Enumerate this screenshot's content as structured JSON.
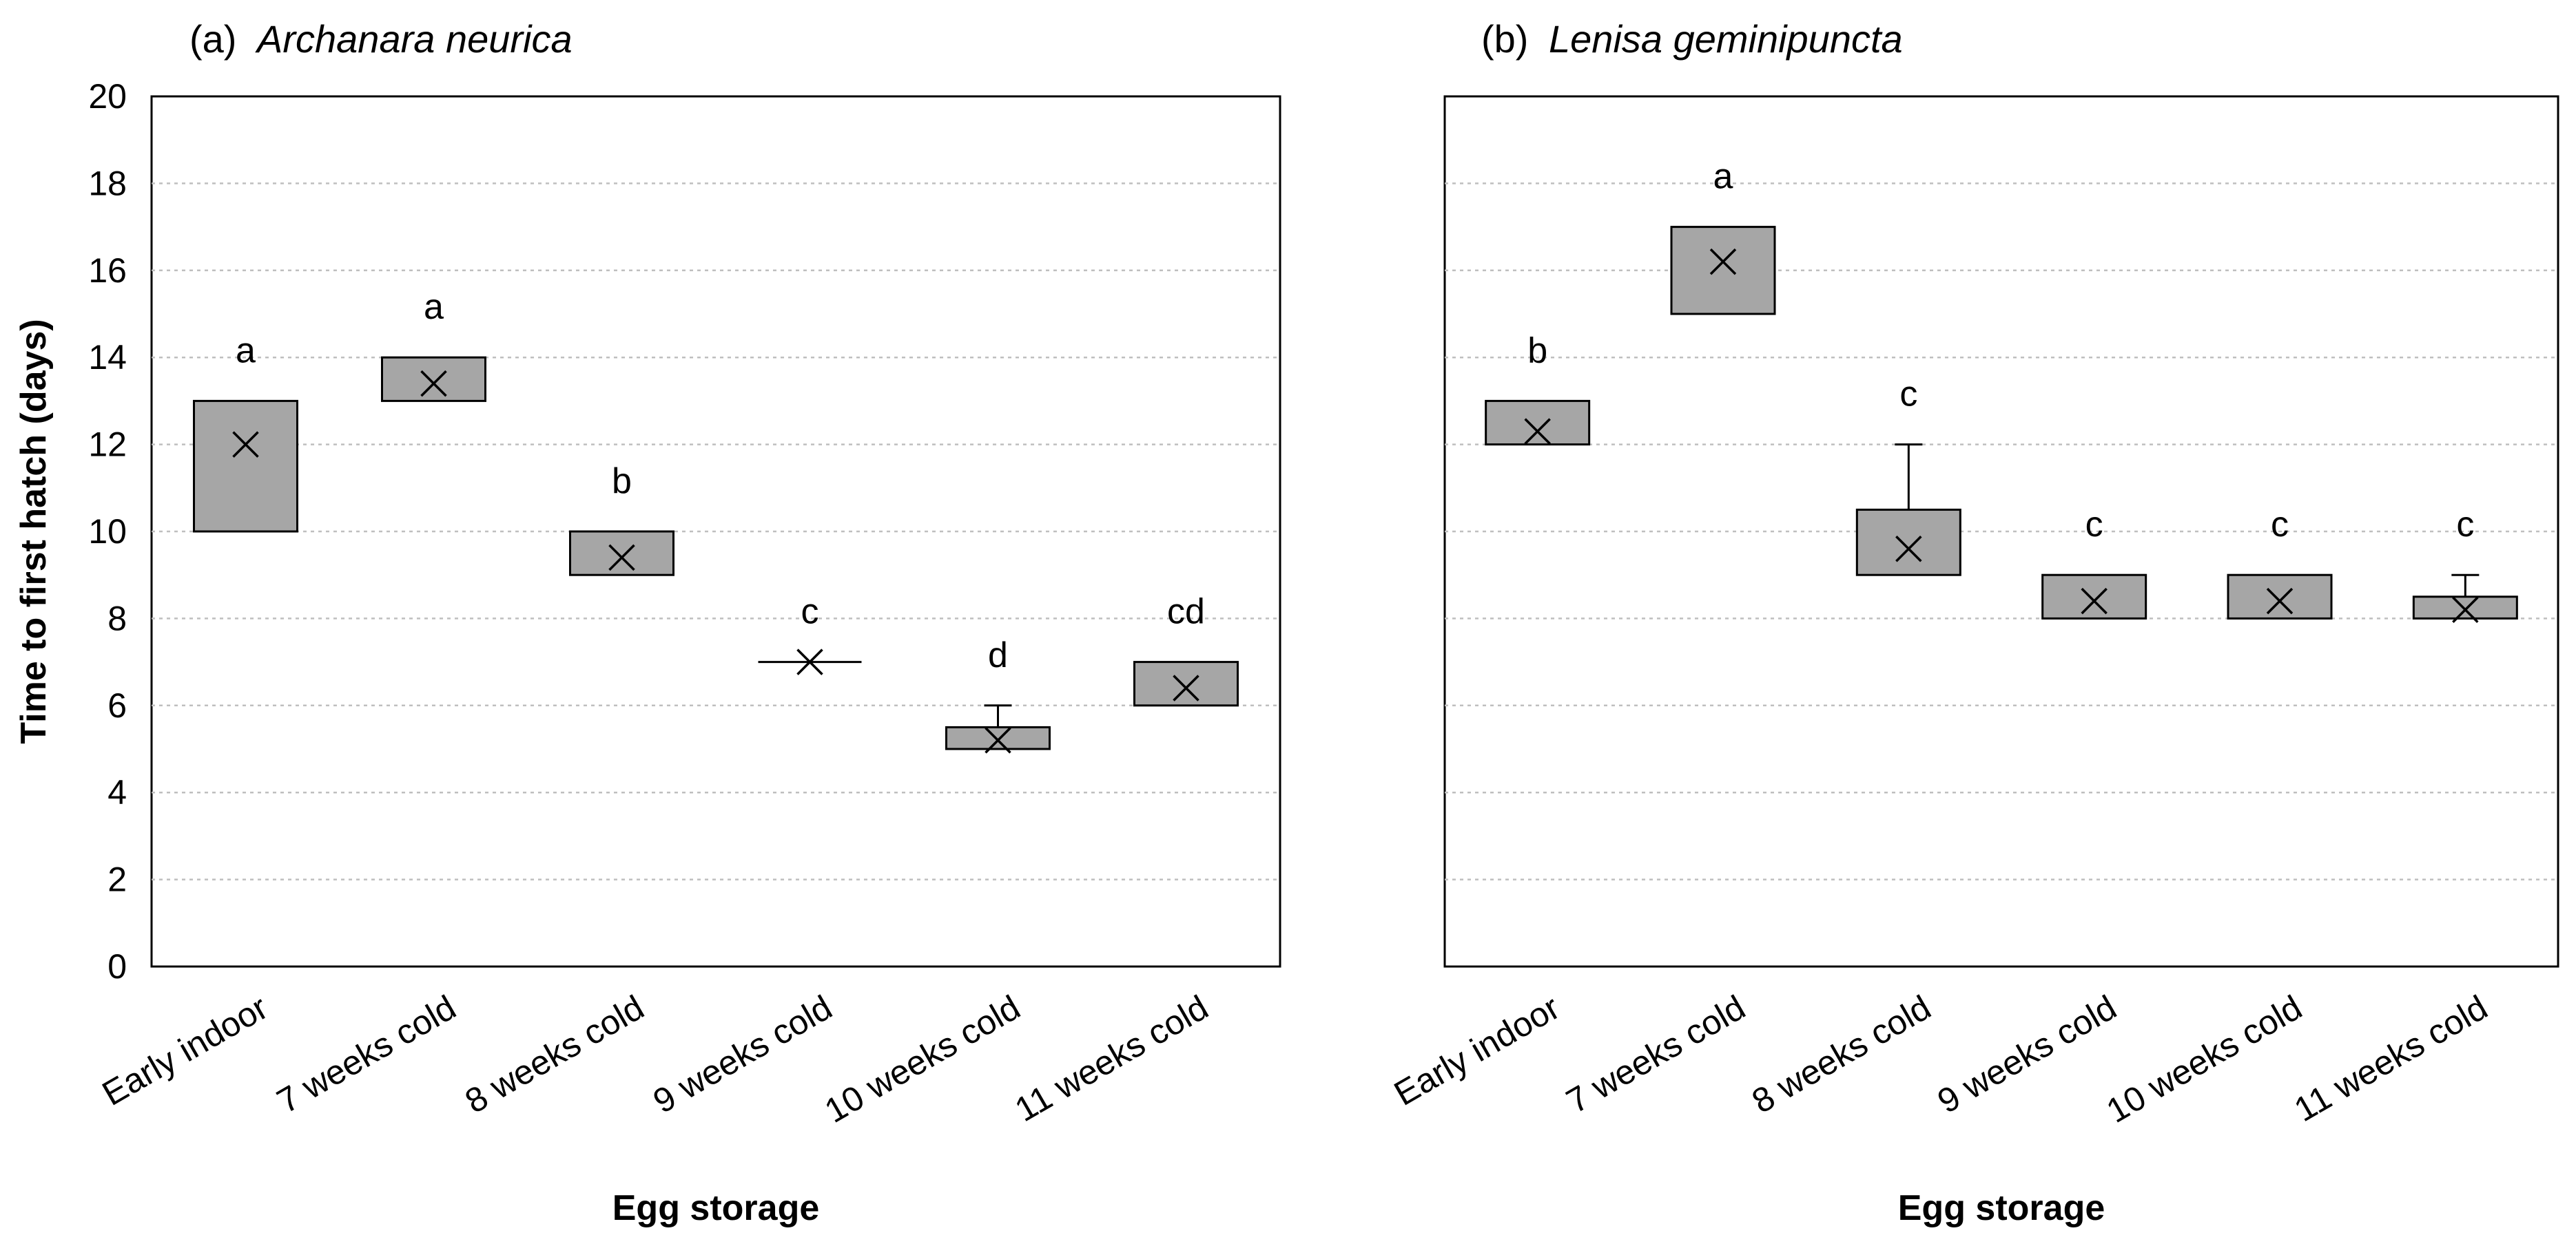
{
  "chart_data": [
    {
      "type": "box",
      "panel_label": "(a)",
      "title": "Archanara neurica",
      "xlabel": "Egg storage",
      "ylabel": "Time to first hatch (days)",
      "ylim": [
        0,
        20
      ],
      "yticks": [
        0,
        2,
        4,
        6,
        8,
        10,
        12,
        14,
        16,
        18,
        20
      ],
      "grid": true,
      "categories": [
        "Early indoor",
        "7 weeks cold",
        "8 weeks cold",
        "9 weeks cold",
        "10 weeks cold",
        "11 weeks cold"
      ],
      "boxes": [
        {
          "category": "Early indoor",
          "q1": 10,
          "q3": 13,
          "mean": 12,
          "whisker_high": 13,
          "letter": "a"
        },
        {
          "category": "7 weeks cold",
          "q1": 13,
          "q3": 14,
          "mean": 13.4,
          "whisker_high": 14,
          "letter": "a"
        },
        {
          "category": "8 weeks cold",
          "q1": 9,
          "q3": 10,
          "mean": 9.4,
          "whisker_high": 10,
          "letter": "b"
        },
        {
          "category": "9 weeks cold",
          "q1": 7,
          "q3": 7,
          "mean": 7,
          "whisker_high": 7,
          "letter": "c"
        },
        {
          "category": "10 weeks cold",
          "q1": 5,
          "q3": 5.5,
          "mean": 5.2,
          "whisker_high": 6,
          "letter": "d"
        },
        {
          "category": "11 weeks cold",
          "q1": 6,
          "q3": 7,
          "mean": 6.4,
          "whisker_high": 7,
          "letter": "cd"
        }
      ]
    },
    {
      "type": "box",
      "panel_label": "(b)",
      "title": "Lenisa geminipuncta",
      "xlabel": "Egg storage",
      "ylim": [
        0,
        20
      ],
      "grid": true,
      "categories": [
        "Early indoor",
        "7 weeks cold",
        "8 weeks cold",
        "9 weeks cold",
        "10 weeks cold",
        "11 weeks cold"
      ],
      "boxes": [
        {
          "category": "Early indoor",
          "q1": 12,
          "q3": 13,
          "mean": 12.3,
          "whisker_high": 13,
          "letter": "b"
        },
        {
          "category": "7 weeks cold",
          "q1": 15,
          "q3": 17,
          "mean": 16.2,
          "whisker_high": 17,
          "letter": "a"
        },
        {
          "category": "8 weeks cold",
          "q1": 9,
          "q3": 10.5,
          "mean": 9.6,
          "whisker_high": 12,
          "letter": "c"
        },
        {
          "category": "9 weeks cold",
          "q1": 8,
          "q3": 9,
          "mean": 8.4,
          "whisker_high": 9,
          "letter": "c"
        },
        {
          "category": "10 weeks cold",
          "q1": 8,
          "q3": 9,
          "mean": 8.4,
          "whisker_high": 9,
          "letter": "c"
        },
        {
          "category": "11 weeks cold",
          "q1": 8,
          "q3": 8.5,
          "mean": 8.2,
          "whisker_high": 9,
          "letter": "c"
        }
      ]
    }
  ]
}
